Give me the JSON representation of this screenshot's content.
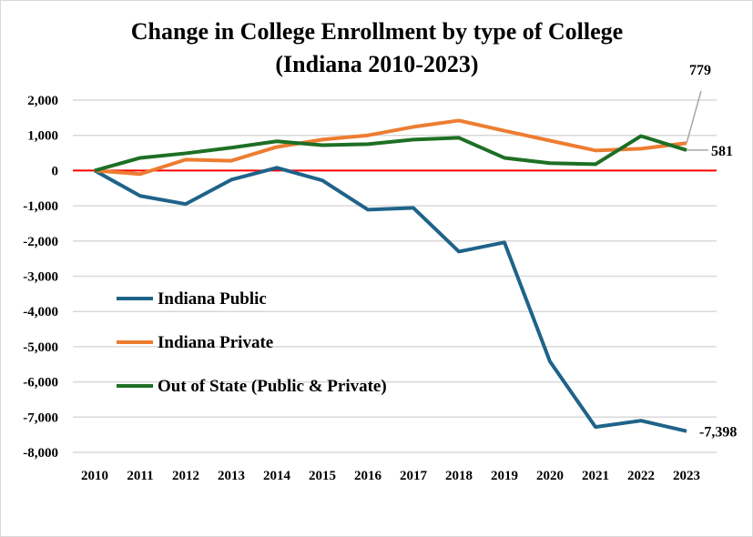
{
  "chart_data": {
    "type": "line",
    "title": "Change in College Enrollment by type of College",
    "subtitle": "(Indiana 2010-2023)",
    "xlabel": "",
    "ylabel": "",
    "x": [
      "2010",
      "2011",
      "2012",
      "2013",
      "2014",
      "2015",
      "2016",
      "2017",
      "2018",
      "2019",
      "2020",
      "2021",
      "2022",
      "2023"
    ],
    "ylim": [
      -8000,
      2000
    ],
    "yticks": [
      2000,
      1000,
      0,
      -1000,
      -2000,
      -3000,
      -4000,
      -5000,
      -6000,
      -7000,
      -8000
    ],
    "ytick_labels": [
      "2,000",
      "1,000",
      "0",
      "-1,000",
      "-2,000",
      "-3,000",
      "-4,000",
      "-5,000",
      "-6,000",
      "-7,000",
      "-8,000"
    ],
    "grid": true,
    "zero_line_color": "#ff0000",
    "legend_position": "center-left",
    "series": [
      {
        "name": "Indiana Public",
        "color": "#1f6389",
        "values": [
          0,
          -720,
          -950,
          -260,
          80,
          -280,
          -1110,
          -1060,
          -2300,
          -2040,
          -5420,
          -7280,
          -7100,
          -7398
        ],
        "end_label": "-7,398"
      },
      {
        "name": "Indiana Private",
        "color": "#ed7d31",
        "values": [
          0,
          -100,
          310,
          280,
          670,
          880,
          1000,
          1240,
          1420,
          1130,
          850,
          570,
          620,
          779
        ],
        "end_label": "779"
      },
      {
        "name": "Out of State (Public & Private)",
        "color": "#1e6f25",
        "values": [
          0,
          360,
          490,
          650,
          830,
          720,
          750,
          880,
          930,
          360,
          210,
          180,
          980,
          581
        ],
        "end_label": "581"
      }
    ]
  }
}
